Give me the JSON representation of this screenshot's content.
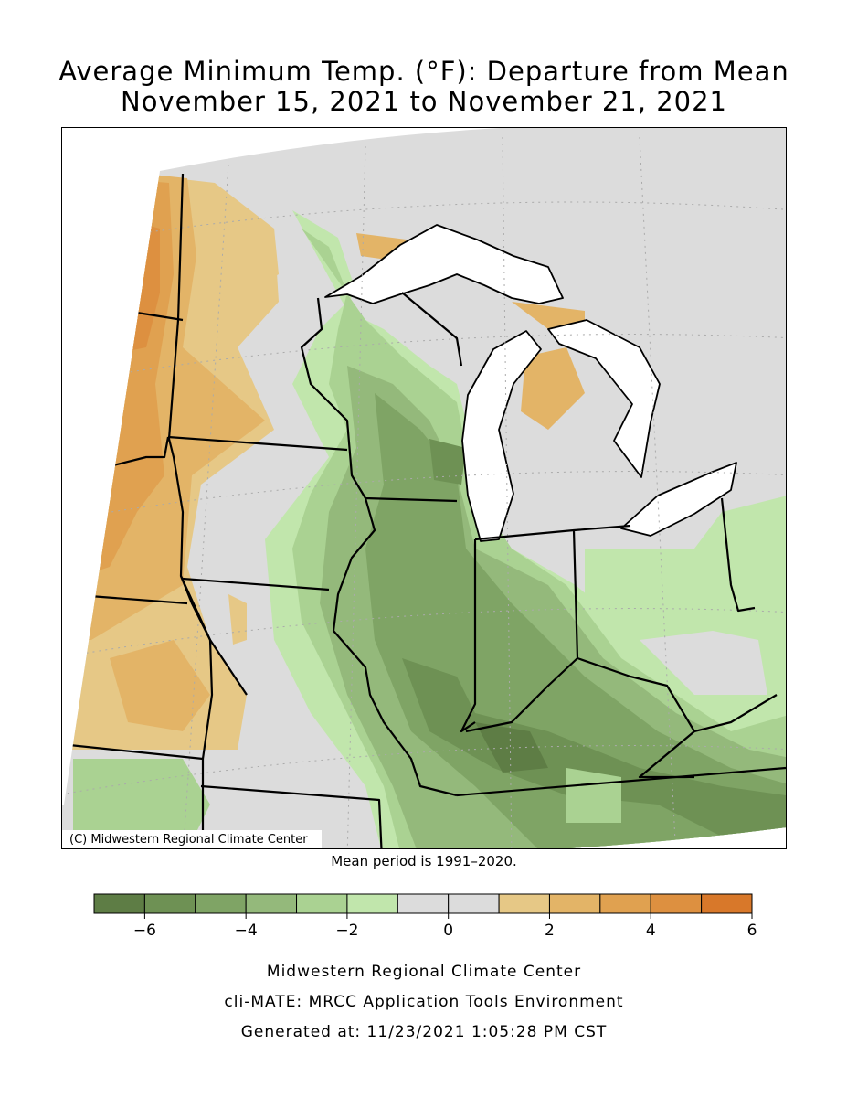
{
  "title": [
    "Average Minimum Temp. (°F): Departure from Mean",
    "November 15, 2021 to November 21, 2021"
  ],
  "map": {
    "copyright": "(C) Midwestern Regional Climate Center",
    "note": "Mean period is 1991–2020."
  },
  "colorbar": {
    "bins": [
      -7,
      -6,
      -5,
      -4,
      -3,
      -2,
      -1,
      0,
      1,
      2,
      3,
      4,
      5,
      6
    ],
    "colors": [
      "#5e7d45",
      "#6e9154",
      "#7fa465",
      "#94b97b",
      "#aad292",
      "#c1e6ac",
      "#dcdcdc",
      "#dcdcdc",
      "#e6c886",
      "#e3b467",
      "#e0a150",
      "#dd9040",
      "#d8782a"
    ],
    "lim": [
      -7,
      6
    ],
    "ticks": [
      {
        "value": -6,
        "label": "−6"
      },
      {
        "value": -4,
        "label": "−4"
      },
      {
        "value": -2,
        "label": "−2"
      },
      0,
      2,
      4,
      6
    ]
  },
  "footer": [
    "Midwestern Regional Climate Center",
    "cli-MATE: MRCC Application Tools Environment",
    "Generated at: 11/23/2021 1:05:28 PM CST"
  ]
}
